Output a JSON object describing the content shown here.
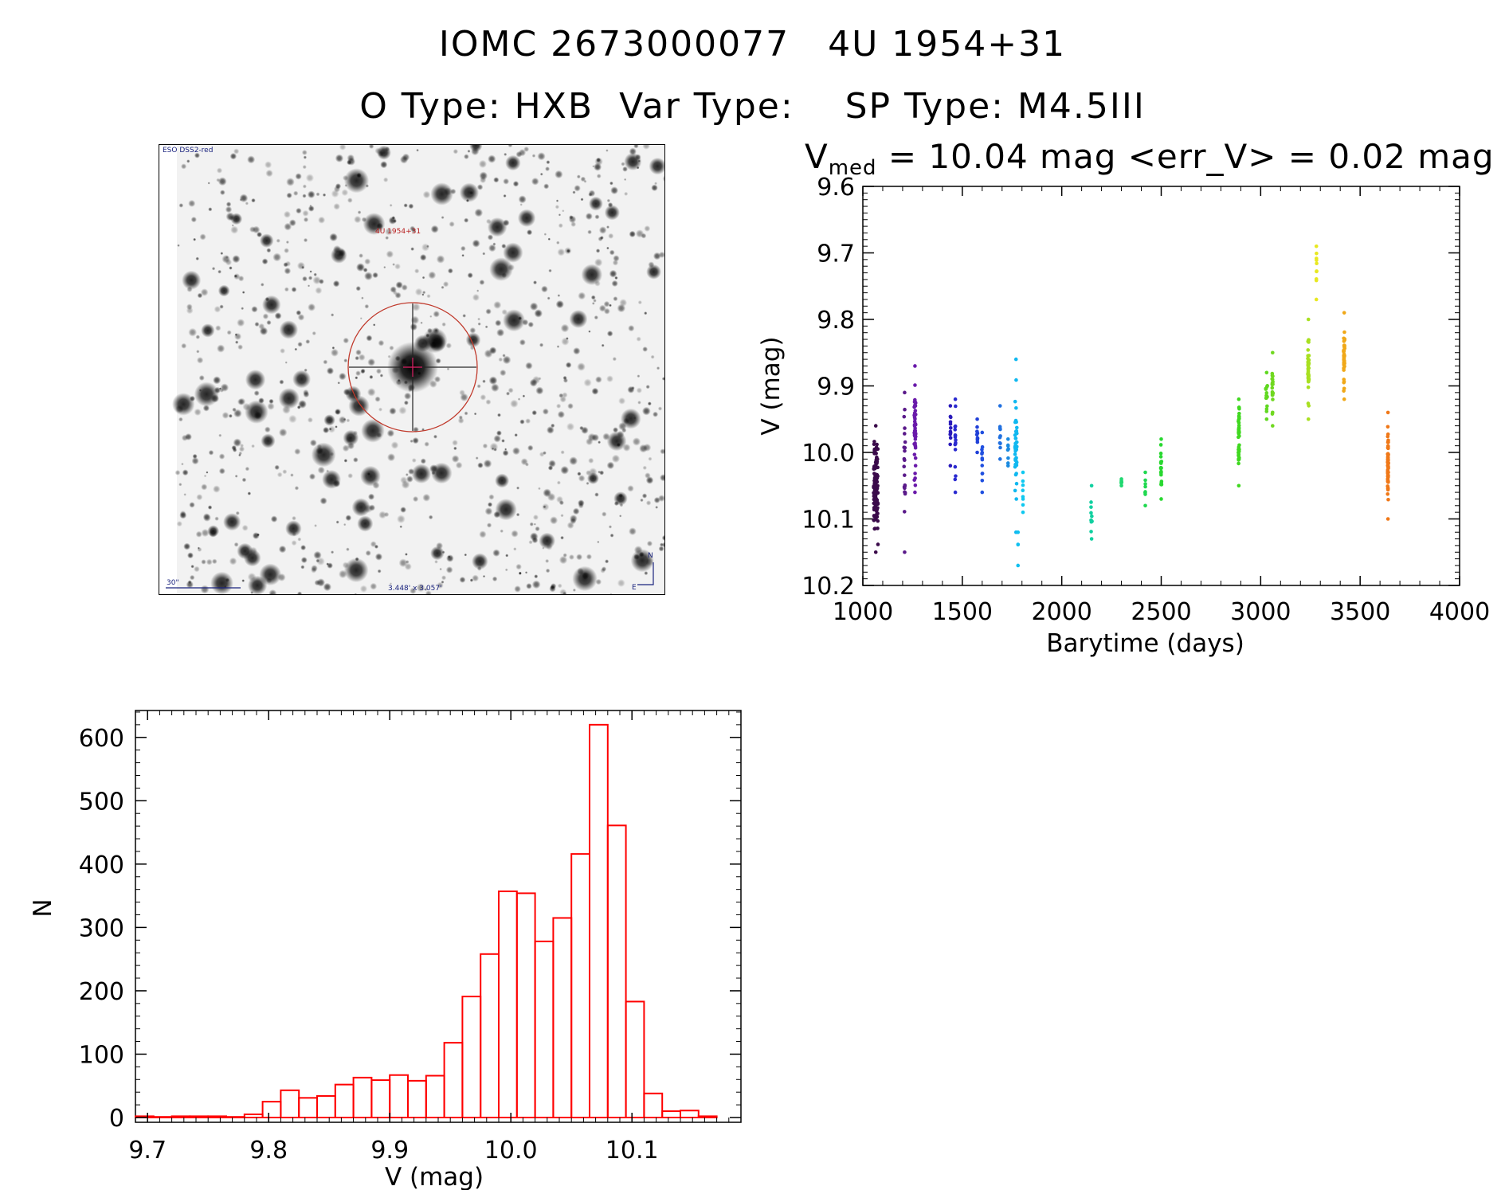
{
  "header": {
    "line1": "IOMC 2673000077   4U 1954+31",
    "line2": "O Type: HXB  Var Type:    SP Type: M4.5III"
  },
  "finder": {
    "survey_label": "ESO DSS2-red",
    "target_label": "4U 1954+31",
    "scale_label": "30\"",
    "fov_label": "3.448' x 3.057'",
    "north_label": "N",
    "east_label": "E",
    "circle_color": "#c0392b"
  },
  "lightcurve": {
    "title_prefix": "V",
    "title_sub": "med",
    "title_rest": " = 10.04 mag <err_V> = 0.02 mag",
    "chart_data": {
      "type": "scatter",
      "xlabel": "Barytime (days)",
      "ylabel": "V (mag)",
      "xlim": [
        1000,
        4000
      ],
      "ylim": [
        10.2,
        9.6
      ],
      "xticks": [
        "1000",
        "1500",
        "2000",
        "2500",
        "3000",
        "3500",
        "4000"
      ],
      "yticks": [
        "9.6",
        "9.7",
        "9.8",
        "9.9",
        "10.0",
        "10.1",
        "10.2"
      ],
      "groups": [
        {
          "x": 1065,
          "ymin": 9.96,
          "ymax": 10.15,
          "color": "#3a0a4a",
          "n": 120,
          "spread": 22
        },
        {
          "x": 1210,
          "ymin": 9.91,
          "ymax": 10.15,
          "color": "#5a1a8a",
          "n": 20,
          "spread": 6
        },
        {
          "x": 1262,
          "ymin": 9.87,
          "ymax": 10.06,
          "color": "#6a1aaa",
          "n": 45,
          "spread": 8
        },
        {
          "x": 1440,
          "ymin": 9.93,
          "ymax": 10.02,
          "color": "#2a1aba",
          "n": 10,
          "spread": 4
        },
        {
          "x": 1465,
          "ymin": 9.92,
          "ymax": 10.06,
          "color": "#2a2ad0",
          "n": 15,
          "spread": 4
        },
        {
          "x": 1575,
          "ymin": 9.95,
          "ymax": 10.0,
          "color": "#2040d8",
          "n": 8,
          "spread": 4
        },
        {
          "x": 1600,
          "ymin": 9.97,
          "ymax": 10.06,
          "color": "#2050e0",
          "n": 10,
          "spread": 3
        },
        {
          "x": 1690,
          "ymin": 9.93,
          "ymax": 10.01,
          "color": "#2070e0",
          "n": 8,
          "spread": 3
        },
        {
          "x": 1730,
          "ymin": 9.98,
          "ymax": 10.02,
          "color": "#1a8ae0",
          "n": 6,
          "spread": 3
        },
        {
          "x": 1770,
          "ymin": 9.86,
          "ymax": 10.12,
          "color": "#10b8f0",
          "n": 40,
          "spread": 10
        },
        {
          "x": 1780,
          "ymin": 10.12,
          "ymax": 10.17,
          "color": "#10c0f0",
          "n": 2,
          "spread": 1
        },
        {
          "x": 1805,
          "ymin": 10.03,
          "ymax": 10.09,
          "color": "#10c8f0",
          "n": 6,
          "spread": 2
        },
        {
          "x": 2150,
          "ymin": 10.05,
          "ymax": 10.13,
          "color": "#10d0a0",
          "n": 8,
          "spread": 6
        },
        {
          "x": 2300,
          "ymin": 10.04,
          "ymax": 10.05,
          "color": "#20d870",
          "n": 4,
          "spread": 2
        },
        {
          "x": 2420,
          "ymin": 10.03,
          "ymax": 10.08,
          "color": "#20d850",
          "n": 6,
          "spread": 2
        },
        {
          "x": 2500,
          "ymin": 9.98,
          "ymax": 10.07,
          "color": "#28d830",
          "n": 18,
          "spread": 4
        },
        {
          "x": 2890,
          "ymin": 9.92,
          "ymax": 10.05,
          "color": "#40d820",
          "n": 40,
          "spread": 5
        },
        {
          "x": 3030,
          "ymin": 9.88,
          "ymax": 9.95,
          "color": "#60d820",
          "n": 15,
          "spread": 8
        },
        {
          "x": 3060,
          "ymin": 9.85,
          "ymax": 9.96,
          "color": "#70d820",
          "n": 20,
          "spread": 5
        },
        {
          "x": 3240,
          "ymin": 9.8,
          "ymax": 9.95,
          "color": "#a8e020",
          "n": 45,
          "spread": 6
        },
        {
          "x": 3280,
          "ymin": 9.69,
          "ymax": 9.77,
          "color": "#e8e820",
          "n": 8,
          "spread": 3
        },
        {
          "x": 3420,
          "ymin": 9.79,
          "ymax": 9.92,
          "color": "#f0a818",
          "n": 40,
          "spread": 5
        },
        {
          "x": 3640,
          "ymin": 9.94,
          "ymax": 10.1,
          "color": "#f07818",
          "n": 60,
          "spread": 4
        }
      ]
    }
  },
  "histogram": {
    "chart_data": {
      "type": "bar",
      "xlabel": "V (mag)",
      "ylabel": "N",
      "xlim": [
        9.69,
        10.19
      ],
      "ylim": [
        0,
        650
      ],
      "xticks": [
        "9.7",
        "9.8",
        "9.9",
        "10.0",
        "10.1"
      ],
      "yticks": [
        "0",
        "100",
        "200",
        "300",
        "400",
        "500",
        "600"
      ],
      "bin_width": 0.015,
      "bin_starts": [
        9.69,
        9.705,
        9.72,
        9.735,
        9.75,
        9.765,
        9.78,
        9.795,
        9.81,
        9.825,
        9.84,
        9.855,
        9.87,
        9.885,
        9.9,
        9.915,
        9.93,
        9.945,
        9.96,
        9.975,
        9.99,
        10.005,
        10.02,
        10.035,
        10.05,
        10.065,
        10.08,
        10.095,
        10.11,
        10.125,
        10.14,
        10.155
      ],
      "values": [
        2,
        1,
        2,
        2,
        2,
        1,
        5,
        25,
        43,
        31,
        34,
        52,
        63,
        59,
        67,
        58,
        66,
        118,
        191,
        258,
        357,
        354,
        278,
        315,
        416,
        620,
        461,
        183,
        38,
        10,
        11,
        2
      ],
      "color": "#ff0000"
    }
  }
}
